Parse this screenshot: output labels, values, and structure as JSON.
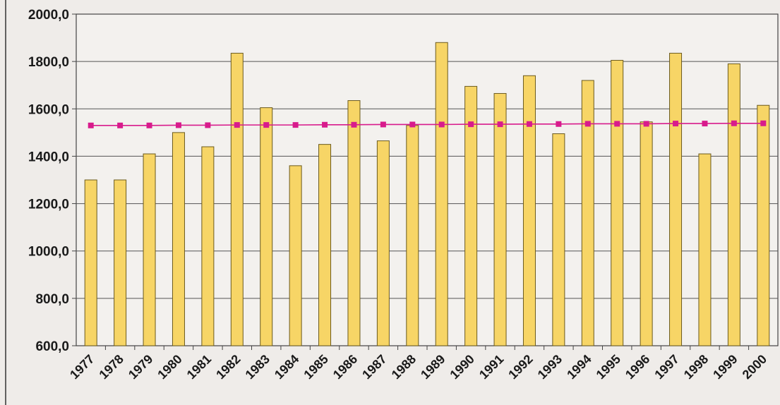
{
  "chart_data": {
    "type": "bar",
    "categories": [
      "1977",
      "1978",
      "1979",
      "1980",
      "1981",
      "1982",
      "1983",
      "1984",
      "1985",
      "1986",
      "1987",
      "1988",
      "1989",
      "1990",
      "1991",
      "1992",
      "1993",
      "1994",
      "1995",
      "1996",
      "1997",
      "1998",
      "1999",
      "2000"
    ],
    "series": [
      {
        "type": "bar",
        "values": [
          1300,
          1300,
          1410,
          1500,
          1440,
          1835,
          1605,
          1360,
          1450,
          1635,
          1465,
          1530,
          1880,
          1695,
          1665,
          1740,
          1495,
          1720,
          1805,
          1545,
          1835,
          1410,
          1790,
          1615
        ],
        "color": "#f7d566"
      },
      {
        "type": "line",
        "values": [
          1530,
          1530,
          1530,
          1531,
          1531,
          1532,
          1532,
          1532,
          1533,
          1533,
          1534,
          1534,
          1534,
          1535,
          1535,
          1536,
          1536,
          1537,
          1537,
          1537,
          1538,
          1538,
          1539,
          1539
        ],
        "color": "#d81b8c"
      }
    ],
    "ylim": [
      600,
      2000
    ],
    "yticks": [
      600,
      800,
      1000,
      1200,
      1400,
      1600,
      1800,
      2000
    ],
    "ytick_labels": [
      "600,0",
      "800,0",
      "1000,0",
      "1200,0",
      "1400,0",
      "1600,0",
      "1800,0",
      "2000,0"
    ],
    "grid": true,
    "legend": "none",
    "title": "",
    "xlabel": "",
    "ylabel": ""
  }
}
